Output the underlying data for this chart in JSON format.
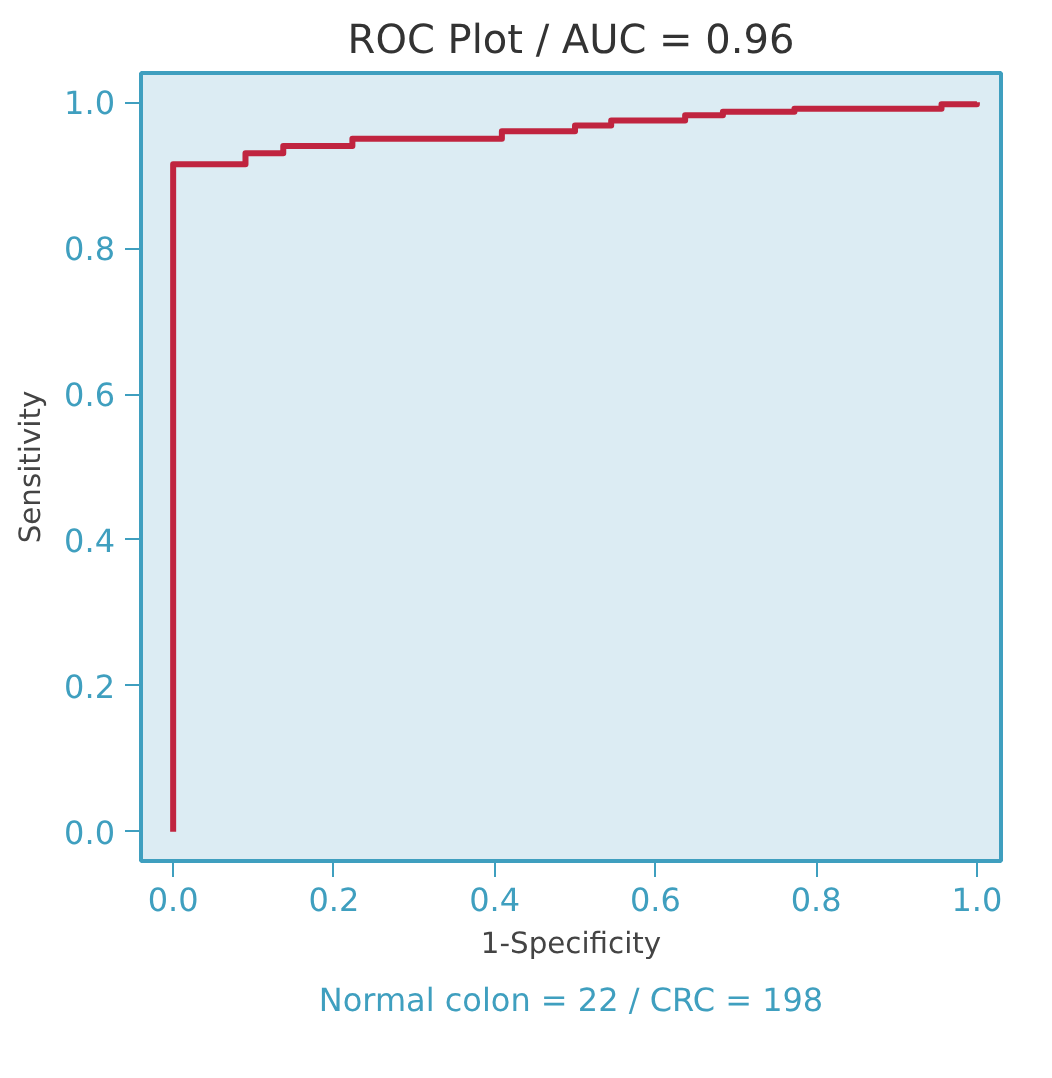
{
  "chart_data": {
    "type": "step",
    "title": "ROC Plot / AUC = 0.96",
    "xlabel": "1-Specificity",
    "ylabel": "Sensitivity",
    "annotations": [
      "Normal colon = 22 / CRC = 198"
    ],
    "x": [
      0,
      0,
      0.09,
      0.137,
      0.223,
      0.409,
      0.5,
      0.545,
      0.637,
      0.684,
      0.773,
      0.956,
      1.0
    ],
    "series": [
      {
        "color": "#c0243f",
        "values": [
          0,
          0.915,
          0.93,
          0.94,
          0.95,
          0.96,
          0.968,
          0.975,
          0.982,
          0.987,
          0.991,
          0.997,
          1.0
        ]
      }
    ],
    "xlim": [
      -0.04,
      1.03
    ],
    "ylim": [
      -0.04,
      1.04
    ],
    "xticks": [
      {
        "value": 0,
        "label": "0.0"
      },
      0.2,
      0.4,
      0.6,
      0.8,
      {
        "value": 1,
        "label": "1.0"
      }
    ],
    "yticks": [
      {
        "value": 0,
        "label": "0.0"
      },
      0.2,
      0.4,
      0.6,
      0.8,
      {
        "value": 1,
        "label": "1.0"
      }
    ],
    "grid": false
  }
}
